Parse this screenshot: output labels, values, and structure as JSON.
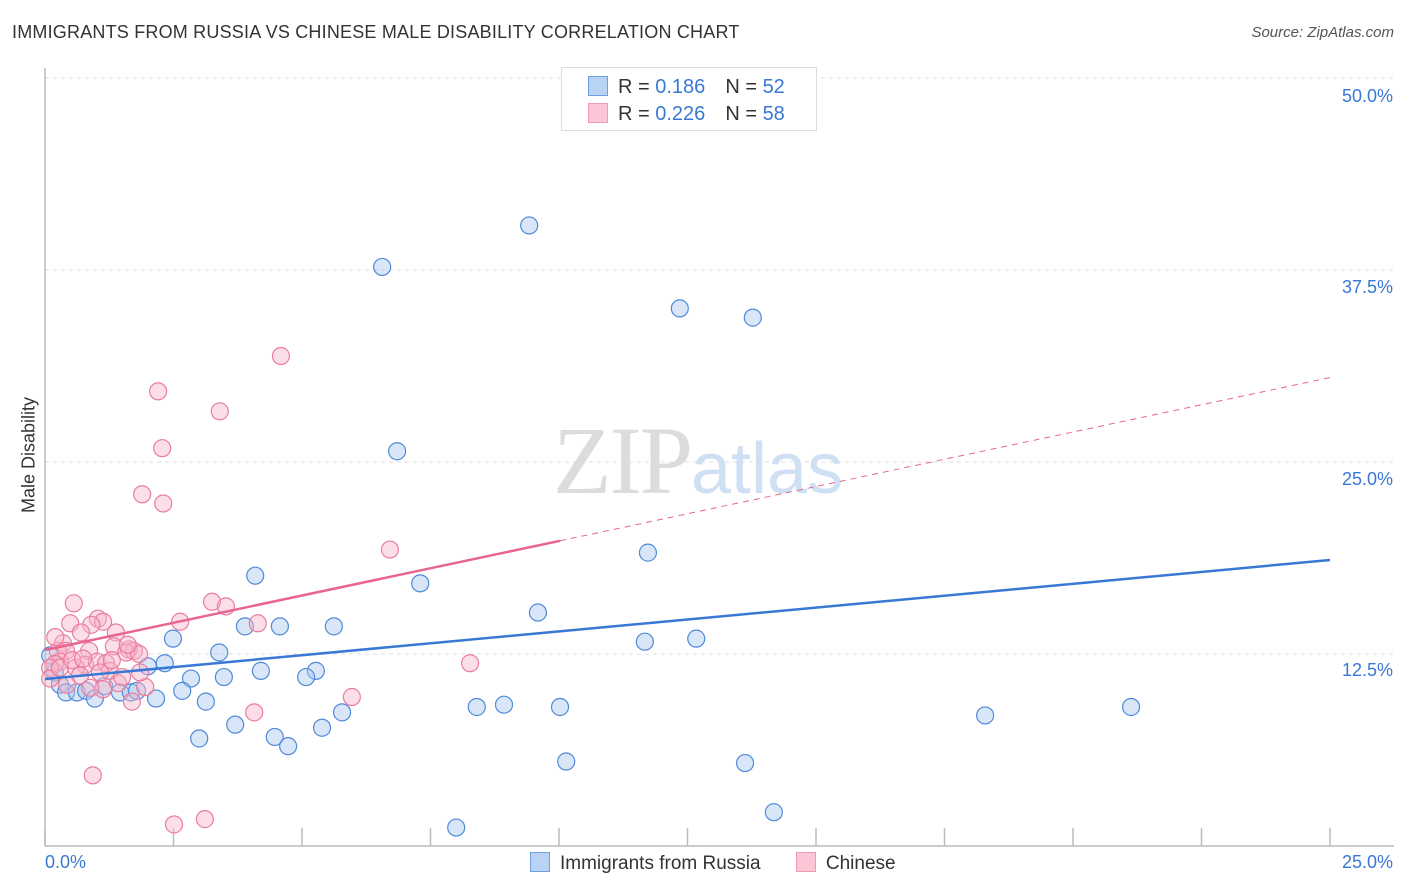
{
  "title": "IMMIGRANTS FROM RUSSIA VS CHINESE MALE DISABILITY CORRELATION CHART",
  "source": "Source: ZipAtlas.com",
  "watermark": {
    "zip": "ZIP",
    "atlas": "atlas"
  },
  "legend": [
    {
      "r_label": "R = ",
      "r": "0.186",
      "n_label": "N = ",
      "n": "52"
    },
    {
      "r_label": "R = ",
      "r": "0.226",
      "n_label": "N = ",
      "n": "58"
    }
  ],
  "chart_data": {
    "type": "scatter",
    "title": "IMMIGRANTS FROM RUSSIA VS CHINESE MALE DISABILITY CORRELATION CHART",
    "xlabel": "",
    "ylabel": "Male Disability",
    "xlim": [
      0,
      25
    ],
    "ylim": [
      0,
      50
    ],
    "x_tick_labels": [
      "0.0%",
      "25.0%"
    ],
    "y_tick_labels": [
      "12.5%",
      "25.0%",
      "37.5%",
      "50.0%"
    ],
    "y_ticks": [
      12.5,
      25,
      37.5,
      50
    ],
    "x_ticks": [
      0,
      2.5,
      5,
      7.5,
      10,
      12.5,
      15,
      17.5,
      20,
      22.5,
      25
    ],
    "grid": true,
    "legend_position": "top-center",
    "colors": {
      "blue": "#3a78d6",
      "blue_fill": "#a9c8f0",
      "pink": "#e8668e",
      "pink_fill": "#f6b6c9"
    },
    "series": [
      {
        "name": "Immigrants from Russia",
        "color": "#3a78d6",
        "trend": {
          "x": [
            0,
            25
          ],
          "y": [
            10.87,
            18.62
          ],
          "solid_to": 25
        },
        "points": [
          [
            9.42,
            40.4
          ],
          [
            6.56,
            37.7
          ],
          [
            12.35,
            35.0
          ],
          [
            13.77,
            34.4
          ],
          [
            6.85,
            25.7
          ],
          [
            11.73,
            19.1
          ],
          [
            4.09,
            17.6
          ],
          [
            7.3,
            17.1
          ],
          [
            9.59,
            15.2
          ],
          [
            3.89,
            14.3
          ],
          [
            4.57,
            14.3
          ],
          [
            5.62,
            14.3
          ],
          [
            11.67,
            13.3
          ],
          [
            12.67,
            13.5
          ],
          [
            2.49,
            13.5
          ],
          [
            3.39,
            12.6
          ],
          [
            2.33,
            11.9
          ],
          [
            2.0,
            11.7
          ],
          [
            4.2,
            11.4
          ],
          [
            5.27,
            11.4
          ],
          [
            5.08,
            11.0
          ],
          [
            3.48,
            11.0
          ],
          [
            2.84,
            10.9
          ],
          [
            0.19,
            11.3
          ],
          [
            0.1,
            12.4
          ],
          [
            0.29,
            10.5
          ],
          [
            0.41,
            10.0
          ],
          [
            0.62,
            10.0
          ],
          [
            0.8,
            10.1
          ],
          [
            0.97,
            9.6
          ],
          [
            1.15,
            10.4
          ],
          [
            1.46,
            10.0
          ],
          [
            1.67,
            10.0
          ],
          [
            1.79,
            10.1
          ],
          [
            2.16,
            9.6
          ],
          [
            2.67,
            10.1
          ],
          [
            3.13,
            9.4
          ],
          [
            5.78,
            8.7
          ],
          [
            3.7,
            7.9
          ],
          [
            5.39,
            7.7
          ],
          [
            3.0,
            7.0
          ],
          [
            4.47,
            7.1
          ],
          [
            4.73,
            6.5
          ],
          [
            8.4,
            9.05
          ],
          [
            8.93,
            9.2
          ],
          [
            10.02,
            9.05
          ],
          [
            10.14,
            5.5
          ],
          [
            13.62,
            5.4
          ],
          [
            18.29,
            8.5
          ],
          [
            21.13,
            9.05
          ],
          [
            14.18,
            2.2
          ],
          [
            8.0,
            1.2
          ]
        ]
      },
      {
        "name": "Chinese",
        "color": "#e8668e",
        "trend": {
          "x": [
            0,
            25
          ],
          "y": [
            12.76,
            30.5
          ],
          "solid_to": 10.02
        },
        "points": [
          [
            4.59,
            31.9
          ],
          [
            2.2,
            29.6
          ],
          [
            3.4,
            28.3
          ],
          [
            2.28,
            25.9
          ],
          [
            1.89,
            22.9
          ],
          [
            2.3,
            22.3
          ],
          [
            6.71,
            19.3
          ],
          [
            0.56,
            15.8
          ],
          [
            3.25,
            15.9
          ],
          [
            3.52,
            15.6
          ],
          [
            2.63,
            14.6
          ],
          [
            4.14,
            14.5
          ],
          [
            1.03,
            14.8
          ],
          [
            1.13,
            14.6
          ],
          [
            0.49,
            14.5
          ],
          [
            0.9,
            14.4
          ],
          [
            0.7,
            13.9
          ],
          [
            1.38,
            13.9
          ],
          [
            0.35,
            13.2
          ],
          [
            0.25,
            12.7
          ],
          [
            0.41,
            12.7
          ],
          [
            0.86,
            12.7
          ],
          [
            1.34,
            13.0
          ],
          [
            1.63,
            12.8
          ],
          [
            1.73,
            12.7
          ],
          [
            1.58,
            12.6
          ],
          [
            1.83,
            12.5
          ],
          [
            0.29,
            12.0
          ],
          [
            0.19,
            11.85
          ],
          [
            0.78,
            11.8
          ],
          [
            1.01,
            12.0
          ],
          [
            1.19,
            11.9
          ],
          [
            0.6,
            11.6
          ],
          [
            1.26,
            11.4
          ],
          [
            0.1,
            11.6
          ],
          [
            0.1,
            10.9
          ],
          [
            0.68,
            11.1
          ],
          [
            1.95,
            10.35
          ],
          [
            1.42,
            10.6
          ],
          [
            1.13,
            10.2
          ],
          [
            1.69,
            9.4
          ],
          [
            8.27,
            11.9
          ],
          [
            5.97,
            9.7
          ],
          [
            4.07,
            8.7
          ],
          [
            0.93,
            4.6
          ],
          [
            2.51,
            1.4
          ],
          [
            3.11,
            1.75
          ],
          [
            0.29,
            11.6
          ],
          [
            0.53,
            12.1
          ],
          [
            1.61,
            13.1
          ],
          [
            0.88,
            10.3
          ],
          [
            0.43,
            10.5
          ],
          [
            1.5,
            11.0
          ],
          [
            1.85,
            11.3
          ],
          [
            1.07,
            11.3
          ],
          [
            0.74,
            12.2
          ],
          [
            1.3,
            12.1
          ],
          [
            0.2,
            13.6
          ]
        ]
      }
    ]
  }
}
